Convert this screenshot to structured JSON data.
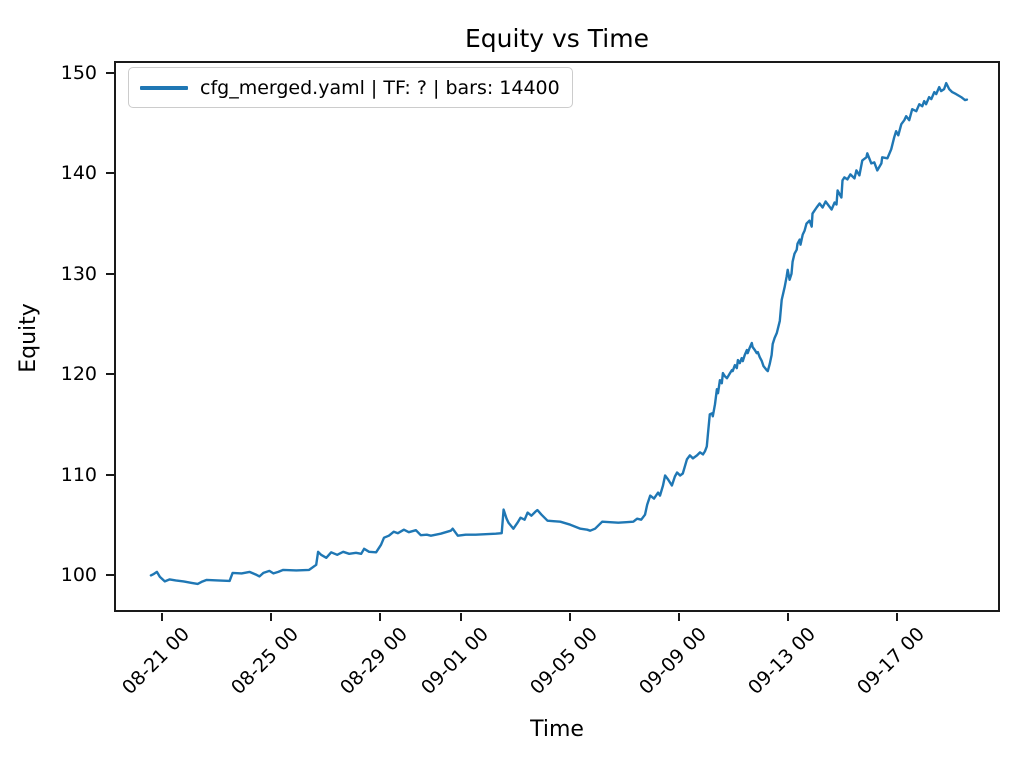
{
  "chart_data": {
    "type": "line",
    "title": "Equity vs Time",
    "xlabel": "Time",
    "ylabel": "Equity",
    "legend_label": "cfg_merged.yaml | TF: ? | bars: 14400",
    "legend_position": "upper left",
    "line_color": "#1f77b4",
    "axis_color": "#1a1a1a",
    "grid": false,
    "x_unit": "days since 08-21 00 tick",
    "xlim": [
      -1.68,
      30.7
    ],
    "ylim": [
      96.5,
      151.0
    ],
    "x_ticks": [
      {
        "value": 0,
        "label": "08-21 00"
      },
      {
        "value": 4,
        "label": "08-25 00"
      },
      {
        "value": 8,
        "label": "08-29 00"
      },
      {
        "value": 11,
        "label": "09-01 00"
      },
      {
        "value": 15,
        "label": "09-05 00"
      },
      {
        "value": 19,
        "label": "09-09 00"
      },
      {
        "value": 23,
        "label": "09-13 00"
      },
      {
        "value": 27,
        "label": "09-17 00"
      }
    ],
    "y_ticks": [
      100,
      110,
      120,
      130,
      140,
      150
    ],
    "series": [
      {
        "name": "cfg_merged.yaml | TF: ? | bars: 14400",
        "points": [
          [
            -0.4,
            99.95
          ],
          [
            -0.29,
            100.1
          ],
          [
            -0.18,
            100.3
          ],
          [
            -0.07,
            99.8
          ],
          [
            0.11,
            99.35
          ],
          [
            0.29,
            99.55
          ],
          [
            0.51,
            99.45
          ],
          [
            0.8,
            99.35
          ],
          [
            1.1,
            99.2
          ],
          [
            1.32,
            99.1
          ],
          [
            1.46,
            99.3
          ],
          [
            1.65,
            99.5
          ],
          [
            2.05,
            99.45
          ],
          [
            2.49,
            99.4
          ],
          [
            2.6,
            100.2
          ],
          [
            2.93,
            100.15
          ],
          [
            3.22,
            100.3
          ],
          [
            3.48,
            100.0
          ],
          [
            3.59,
            99.85
          ],
          [
            3.73,
            100.2
          ],
          [
            3.95,
            100.4
          ],
          [
            4.1,
            100.15
          ],
          [
            4.28,
            100.3
          ],
          [
            4.46,
            100.5
          ],
          [
            4.94,
            100.45
          ],
          [
            5.41,
            100.5
          ],
          [
            5.67,
            101.0
          ],
          [
            5.74,
            102.3
          ],
          [
            5.85,
            102.0
          ],
          [
            6.04,
            101.7
          ],
          [
            6.22,
            102.25
          ],
          [
            6.44,
            102.0
          ],
          [
            6.66,
            102.3
          ],
          [
            6.88,
            102.1
          ],
          [
            7.13,
            102.2
          ],
          [
            7.32,
            102.1
          ],
          [
            7.43,
            102.6
          ],
          [
            7.61,
            102.3
          ],
          [
            7.87,
            102.25
          ],
          [
            8.05,
            103.0
          ],
          [
            8.16,
            103.7
          ],
          [
            8.34,
            103.9
          ],
          [
            8.52,
            104.3
          ],
          [
            8.67,
            104.15
          ],
          [
            8.89,
            104.5
          ],
          [
            9.07,
            104.25
          ],
          [
            9.33,
            104.45
          ],
          [
            9.51,
            103.95
          ],
          [
            9.73,
            104.0
          ],
          [
            9.88,
            103.9
          ],
          [
            10.24,
            104.1
          ],
          [
            10.61,
            104.4
          ],
          [
            10.68,
            104.6
          ],
          [
            10.87,
            103.9
          ],
          [
            11.16,
            104.0
          ],
          [
            11.52,
            104.0
          ],
          [
            11.89,
            104.05
          ],
          [
            12.26,
            104.1
          ],
          [
            12.48,
            104.15
          ],
          [
            12.55,
            106.5
          ],
          [
            12.66,
            105.6
          ],
          [
            12.73,
            105.2
          ],
          [
            12.91,
            104.6
          ],
          [
            13.06,
            105.2
          ],
          [
            13.17,
            105.7
          ],
          [
            13.32,
            105.5
          ],
          [
            13.43,
            106.2
          ],
          [
            13.57,
            105.9
          ],
          [
            13.72,
            106.3
          ],
          [
            13.79,
            106.45
          ],
          [
            13.94,
            106.0
          ],
          [
            14.16,
            105.4
          ],
          [
            14.38,
            105.35
          ],
          [
            14.63,
            105.3
          ],
          [
            15.0,
            105.0
          ],
          [
            15.37,
            104.6
          ],
          [
            15.62,
            104.5
          ],
          [
            15.73,
            104.4
          ],
          [
            15.91,
            104.6
          ],
          [
            16.17,
            105.3
          ],
          [
            16.46,
            105.25
          ],
          [
            16.76,
            105.2
          ],
          [
            17.05,
            105.25
          ],
          [
            17.31,
            105.3
          ],
          [
            17.45,
            105.6
          ],
          [
            17.6,
            105.5
          ],
          [
            17.74,
            106.0
          ],
          [
            17.82,
            107.0
          ],
          [
            17.93,
            107.9
          ],
          [
            18.07,
            107.6
          ],
          [
            18.22,
            108.2
          ],
          [
            18.29,
            107.9
          ],
          [
            18.4,
            108.9
          ],
          [
            18.48,
            109.9
          ],
          [
            18.59,
            109.5
          ],
          [
            18.73,
            108.9
          ],
          [
            18.84,
            109.8
          ],
          [
            18.92,
            110.2
          ],
          [
            19.03,
            109.9
          ],
          [
            19.13,
            110.1
          ],
          [
            19.28,
            111.5
          ],
          [
            19.39,
            111.9
          ],
          [
            19.5,
            111.6
          ],
          [
            19.65,
            111.9
          ],
          [
            19.76,
            112.2
          ],
          [
            19.87,
            112.0
          ],
          [
            19.94,
            112.3
          ],
          [
            20.01,
            112.8
          ],
          [
            20.05,
            114.0
          ],
          [
            20.12,
            116.0
          ],
          [
            20.2,
            116.1
          ],
          [
            20.23,
            115.8
          ],
          [
            20.31,
            117.0
          ],
          [
            20.38,
            118.5
          ],
          [
            20.42,
            118.1
          ],
          [
            20.49,
            119.4
          ],
          [
            20.56,
            119.1
          ],
          [
            20.6,
            120.1
          ],
          [
            20.67,
            119.8
          ],
          [
            20.75,
            119.6
          ],
          [
            20.86,
            120.1
          ],
          [
            20.93,
            120.4
          ],
          [
            20.96,
            120.3
          ],
          [
            21.04,
            120.9
          ],
          [
            21.11,
            120.6
          ],
          [
            21.15,
            121.4
          ],
          [
            21.22,
            121.1
          ],
          [
            21.29,
            121.6
          ],
          [
            21.33,
            121.3
          ],
          [
            21.4,
            121.9
          ],
          [
            21.48,
            122.4
          ],
          [
            21.51,
            122.1
          ],
          [
            21.58,
            122.6
          ],
          [
            21.66,
            123.1
          ],
          [
            21.69,
            122.7
          ],
          [
            21.77,
            122.4
          ],
          [
            21.84,
            122.1
          ],
          [
            21.88,
            122.2
          ],
          [
            21.95,
            121.7
          ],
          [
            22.03,
            121.3
          ],
          [
            22.09,
            120.8
          ],
          [
            22.21,
            120.4
          ],
          [
            22.25,
            120.3
          ],
          [
            22.32,
            121.0
          ],
          [
            22.39,
            121.9
          ],
          [
            22.43,
            123.0
          ],
          [
            22.5,
            123.6
          ],
          [
            22.58,
            124.1
          ],
          [
            22.69,
            125.3
          ],
          [
            22.76,
            127.4
          ],
          [
            22.87,
            128.7
          ],
          [
            22.94,
            129.7
          ],
          [
            22.98,
            130.4
          ],
          [
            23.05,
            129.4
          ],
          [
            23.12,
            130.0
          ],
          [
            23.16,
            131.2
          ],
          [
            23.23,
            132.0
          ],
          [
            23.31,
            132.4
          ],
          [
            23.34,
            133.0
          ],
          [
            23.42,
            133.4
          ],
          [
            23.45,
            132.9
          ],
          [
            23.53,
            133.9
          ],
          [
            23.6,
            134.3
          ],
          [
            23.67,
            135.0
          ],
          [
            23.78,
            135.3
          ],
          [
            23.86,
            134.7
          ],
          [
            23.89,
            136.0
          ],
          [
            24.04,
            136.6
          ],
          [
            24.15,
            137.0
          ],
          [
            24.26,
            136.6
          ],
          [
            24.37,
            137.2
          ],
          [
            24.48,
            136.8
          ],
          [
            24.59,
            136.4
          ],
          [
            24.7,
            137.1
          ],
          [
            24.77,
            136.9
          ],
          [
            24.81,
            138.3
          ],
          [
            24.95,
            137.6
          ],
          [
            24.99,
            139.3
          ],
          [
            25.06,
            139.6
          ],
          [
            25.17,
            139.4
          ],
          [
            25.28,
            139.9
          ],
          [
            25.43,
            139.5
          ],
          [
            25.5,
            140.3
          ],
          [
            25.61,
            139.8
          ],
          [
            25.72,
            141.3
          ],
          [
            25.87,
            141.6
          ],
          [
            25.9,
            142.0
          ],
          [
            26.05,
            141.0
          ],
          [
            26.16,
            141.1
          ],
          [
            26.27,
            140.3
          ],
          [
            26.42,
            141.0
          ],
          [
            26.45,
            141.6
          ],
          [
            26.64,
            141.5
          ],
          [
            26.78,
            142.4
          ],
          [
            26.89,
            143.6
          ],
          [
            26.96,
            144.2
          ],
          [
            27.04,
            143.8
          ],
          [
            27.15,
            144.9
          ],
          [
            27.26,
            145.3
          ],
          [
            27.33,
            145.7
          ],
          [
            27.44,
            145.3
          ],
          [
            27.55,
            146.4
          ],
          [
            27.7,
            146.2
          ],
          [
            27.81,
            146.9
          ],
          [
            27.92,
            146.7
          ],
          [
            27.99,
            147.2
          ],
          [
            28.06,
            146.9
          ],
          [
            28.17,
            147.6
          ],
          [
            28.25,
            147.4
          ],
          [
            28.36,
            148.1
          ],
          [
            28.43,
            147.9
          ],
          [
            28.54,
            148.6
          ],
          [
            28.61,
            148.2
          ],
          [
            28.72,
            148.4
          ],
          [
            28.8,
            149.0
          ],
          [
            28.91,
            148.4
          ],
          [
            29.02,
            148.1
          ],
          [
            29.16,
            147.9
          ],
          [
            29.35,
            147.6
          ],
          [
            29.49,
            147.3
          ],
          [
            29.56,
            147.35
          ]
        ]
      }
    ]
  }
}
